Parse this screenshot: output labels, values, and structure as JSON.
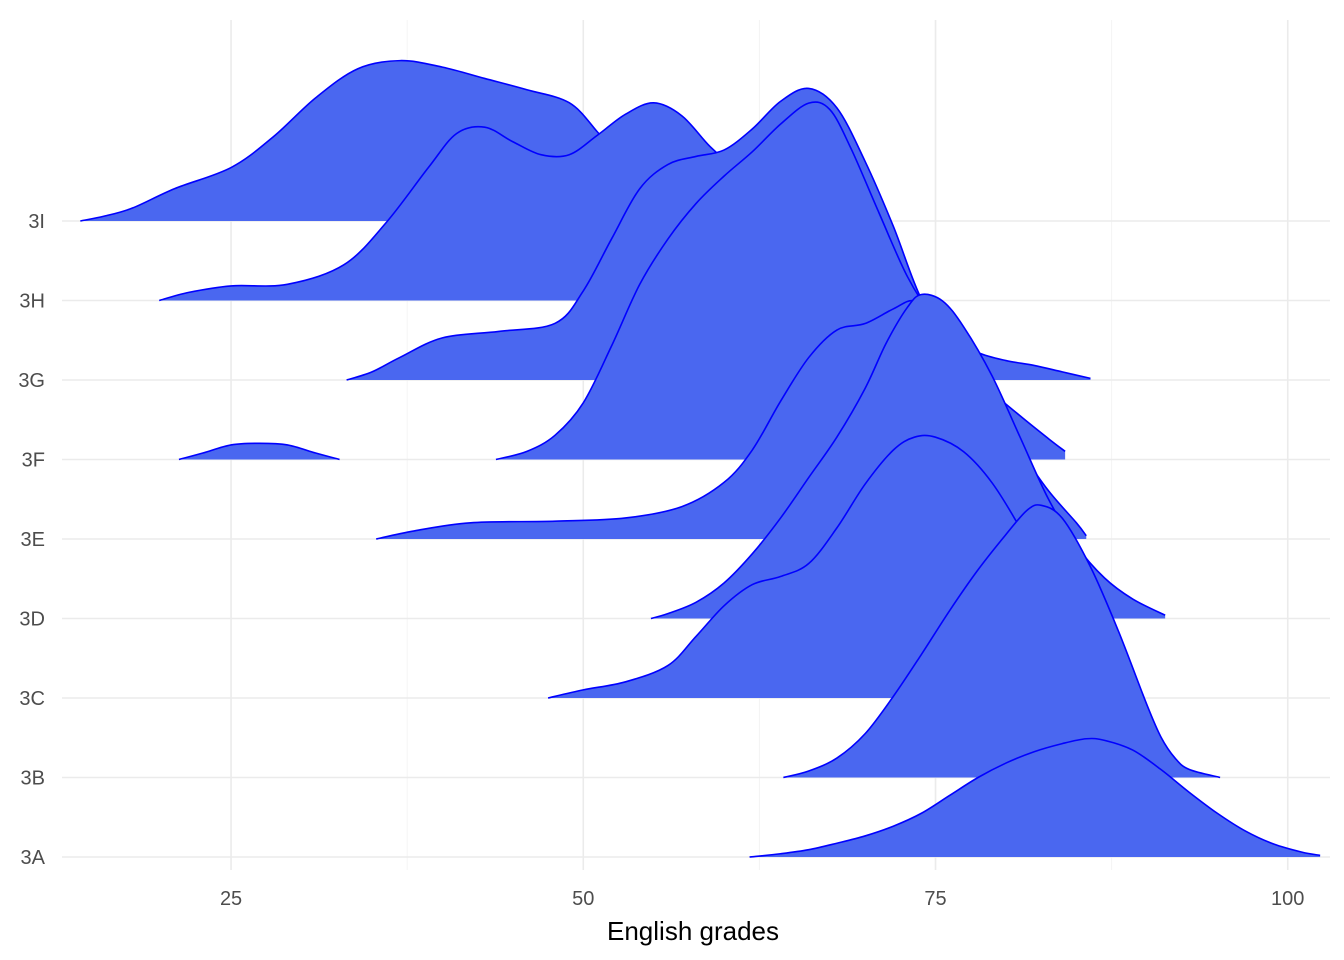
{
  "chart_data": {
    "type": "ridgeline",
    "xlabel": "English grades",
    "ylabel": "",
    "title": "",
    "xlim": [
      13,
      103
    ],
    "x_ticks": [
      25,
      50,
      75,
      100
    ],
    "categories": [
      "3A",
      "3B",
      "3C",
      "3D",
      "3E",
      "3F",
      "3G",
      "3H",
      "3I"
    ],
    "grid": true,
    "fill_color": "#4a67f0",
    "line_color": "#0000ff",
    "series": [
      {
        "name": "3A",
        "points": [
          [
            61.8,
            0
          ],
          [
            64,
            0.02
          ],
          [
            66,
            0.045
          ],
          [
            68,
            0.085
          ],
          [
            70,
            0.13
          ],
          [
            72,
            0.19
          ],
          [
            74,
            0.27
          ],
          [
            76,
            0.38
          ],
          [
            78,
            0.49
          ],
          [
            80,
            0.58
          ],
          [
            82,
            0.65
          ],
          [
            84,
            0.7
          ],
          [
            85.7,
            0.73
          ],
          [
            87,
            0.72
          ],
          [
            89,
            0.66
          ],
          [
            91,
            0.54
          ],
          [
            93,
            0.4
          ],
          [
            95,
            0.27
          ],
          [
            97,
            0.16
          ],
          [
            99,
            0.08
          ],
          [
            101,
            0.03
          ],
          [
            102.3,
            0.01
          ]
        ]
      },
      {
        "name": "3B",
        "points": [
          [
            64.2,
            0
          ],
          [
            66,
            0.04
          ],
          [
            68,
            0.12
          ],
          [
            70,
            0.27
          ],
          [
            72,
            0.5
          ],
          [
            74,
            0.76
          ],
          [
            76,
            1.03
          ],
          [
            78,
            1.28
          ],
          [
            80,
            1.5
          ],
          [
            81.5,
            1.65
          ],
          [
            82.5,
            1.68
          ],
          [
            84,
            1.6
          ],
          [
            86,
            1.3
          ],
          [
            88,
            0.9
          ],
          [
            90,
            0.45
          ],
          [
            91,
            0.25
          ],
          [
            92,
            0.12
          ],
          [
            93,
            0.05
          ],
          [
            95.2,
            0
          ]
        ]
      },
      {
        "name": "3C",
        "points": [
          [
            47.5,
            0
          ],
          [
            50,
            0.05
          ],
          [
            53,
            0.1
          ],
          [
            56,
            0.2
          ],
          [
            58,
            0.38
          ],
          [
            60,
            0.57
          ],
          [
            62,
            0.7
          ],
          [
            64,
            0.75
          ],
          [
            66,
            0.83
          ],
          [
            68,
            1.05
          ],
          [
            70,
            1.32
          ],
          [
            72,
            1.53
          ],
          [
            73.5,
            1.61
          ],
          [
            75,
            1.61
          ],
          [
            77,
            1.52
          ],
          [
            79,
            1.33
          ],
          [
            81,
            1.05
          ],
          [
            83,
            0.72
          ],
          [
            85,
            0.43
          ],
          [
            87,
            0.22
          ],
          [
            89,
            0.05
          ],
          [
            89.8,
            0
          ]
        ]
      },
      {
        "name": "3D",
        "points": [
          [
            54.8,
            0
          ],
          [
            56,
            0.03
          ],
          [
            58,
            0.1
          ],
          [
            60,
            0.22
          ],
          [
            62,
            0.4
          ],
          [
            64,
            0.62
          ],
          [
            66,
            0.87
          ],
          [
            68,
            1.12
          ],
          [
            70,
            1.42
          ],
          [
            71.5,
            1.7
          ],
          [
            73,
            1.92
          ],
          [
            74,
            2
          ],
          [
            75.5,
            1.96
          ],
          [
            77,
            1.8
          ],
          [
            79,
            1.5
          ],
          [
            81,
            1.12
          ],
          [
            83,
            0.74
          ],
          [
            85,
            0.45
          ],
          [
            87,
            0.25
          ],
          [
            89,
            0.12
          ],
          [
            91.3,
            0.02
          ]
        ]
      },
      {
        "name": "3E",
        "points": [
          [
            35.3,
            0
          ],
          [
            38,
            0.05
          ],
          [
            42,
            0.1
          ],
          [
            48,
            0.11
          ],
          [
            53,
            0.13
          ],
          [
            57,
            0.2
          ],
          [
            60,
            0.35
          ],
          [
            62,
            0.55
          ],
          [
            64,
            0.85
          ],
          [
            66,
            1.12
          ],
          [
            68,
            1.29
          ],
          [
            70,
            1.33
          ],
          [
            72,
            1.42
          ],
          [
            73.5,
            1.47
          ],
          [
            75,
            1.36
          ],
          [
            77,
            1.13
          ],
          [
            79,
            0.83
          ],
          [
            81,
            0.55
          ],
          [
            83,
            0.3
          ],
          [
            85,
            0.1
          ],
          [
            85.7,
            0.02
          ]
        ]
      },
      {
        "name": "3F",
        "points": [
          [
            21.3,
            0
          ],
          [
            23,
            0.04
          ],
          [
            25,
            0.09
          ],
          [
            27,
            0.1
          ],
          [
            29,
            0.09
          ],
          [
            31,
            0.04
          ],
          [
            32.7,
            0
          ],
          null,
          [
            43.8,
            0
          ],
          [
            46,
            0.05
          ],
          [
            48,
            0.15
          ],
          [
            50,
            0.35
          ],
          [
            52,
            0.7
          ],
          [
            54,
            1.08
          ],
          [
            56,
            1.36
          ],
          [
            58,
            1.58
          ],
          [
            60,
            1.75
          ],
          [
            62,
            1.9
          ],
          [
            64,
            2.07
          ],
          [
            66,
            2.2
          ],
          [
            67.5,
            2.16
          ],
          [
            69,
            1.92
          ],
          [
            71,
            1.52
          ],
          [
            73,
            1.13
          ],
          [
            75,
            0.85
          ],
          [
            77,
            0.62
          ],
          [
            79,
            0.42
          ],
          [
            81,
            0.27
          ],
          [
            83,
            0.13
          ],
          [
            84.2,
            0.05
          ]
        ]
      },
      {
        "name": "3G",
        "points": [
          [
            33.2,
            0
          ],
          [
            35,
            0.05
          ],
          [
            37,
            0.14
          ],
          [
            40,
            0.26
          ],
          [
            44,
            0.3
          ],
          [
            48,
            0.35
          ],
          [
            50,
            0.55
          ],
          [
            52,
            0.87
          ],
          [
            54,
            1.18
          ],
          [
            56,
            1.33
          ],
          [
            58,
            1.38
          ],
          [
            60,
            1.42
          ],
          [
            62,
            1.55
          ],
          [
            64,
            1.72
          ],
          [
            66,
            1.8
          ],
          [
            68,
            1.68
          ],
          [
            70,
            1.35
          ],
          [
            72,
            0.95
          ],
          [
            74,
            0.5
          ],
          [
            76,
            0.27
          ],
          [
            78,
            0.17
          ],
          [
            80,
            0.12
          ],
          [
            82,
            0.09
          ],
          [
            84,
            0.05
          ],
          [
            86,
            0.01
          ]
        ]
      },
      {
        "name": "3H",
        "points": [
          [
            19.9,
            0
          ],
          [
            22,
            0.05
          ],
          [
            25,
            0.09
          ],
          [
            29,
            0.1
          ],
          [
            33,
            0.22
          ],
          [
            36,
            0.48
          ],
          [
            39,
            0.82
          ],
          [
            41,
            1.03
          ],
          [
            43,
            1.07
          ],
          [
            45,
            0.98
          ],
          [
            47,
            0.9
          ],
          [
            49,
            0.9
          ],
          [
            51,
            1.02
          ],
          [
            53,
            1.15
          ],
          [
            55,
            1.22
          ],
          [
            57,
            1.14
          ],
          [
            59,
            0.95
          ],
          [
            61,
            0.8
          ],
          [
            63,
            0.68
          ],
          [
            65,
            0.55
          ],
          [
            67,
            0.42
          ],
          [
            69,
            0.27
          ],
          [
            71,
            0.12
          ],
          [
            73,
            0.05
          ],
          [
            74.5,
            0.02
          ]
        ]
      },
      {
        "name": "3I",
        "points": [
          [
            14.3,
            0
          ],
          [
            16,
            0.03
          ],
          [
            18,
            0.08
          ],
          [
            21,
            0.2
          ],
          [
            25,
            0.33
          ],
          [
            28,
            0.52
          ],
          [
            31,
            0.76
          ],
          [
            34,
            0.94
          ],
          [
            37,
            0.99
          ],
          [
            40,
            0.95
          ],
          [
            43,
            0.88
          ],
          [
            46,
            0.81
          ],
          [
            49,
            0.73
          ],
          [
            51,
            0.55
          ],
          [
            53,
            0.33
          ],
          [
            55,
            0.12
          ],
          [
            57,
            0.04
          ],
          [
            58,
            0.01
          ]
        ]
      }
    ]
  }
}
